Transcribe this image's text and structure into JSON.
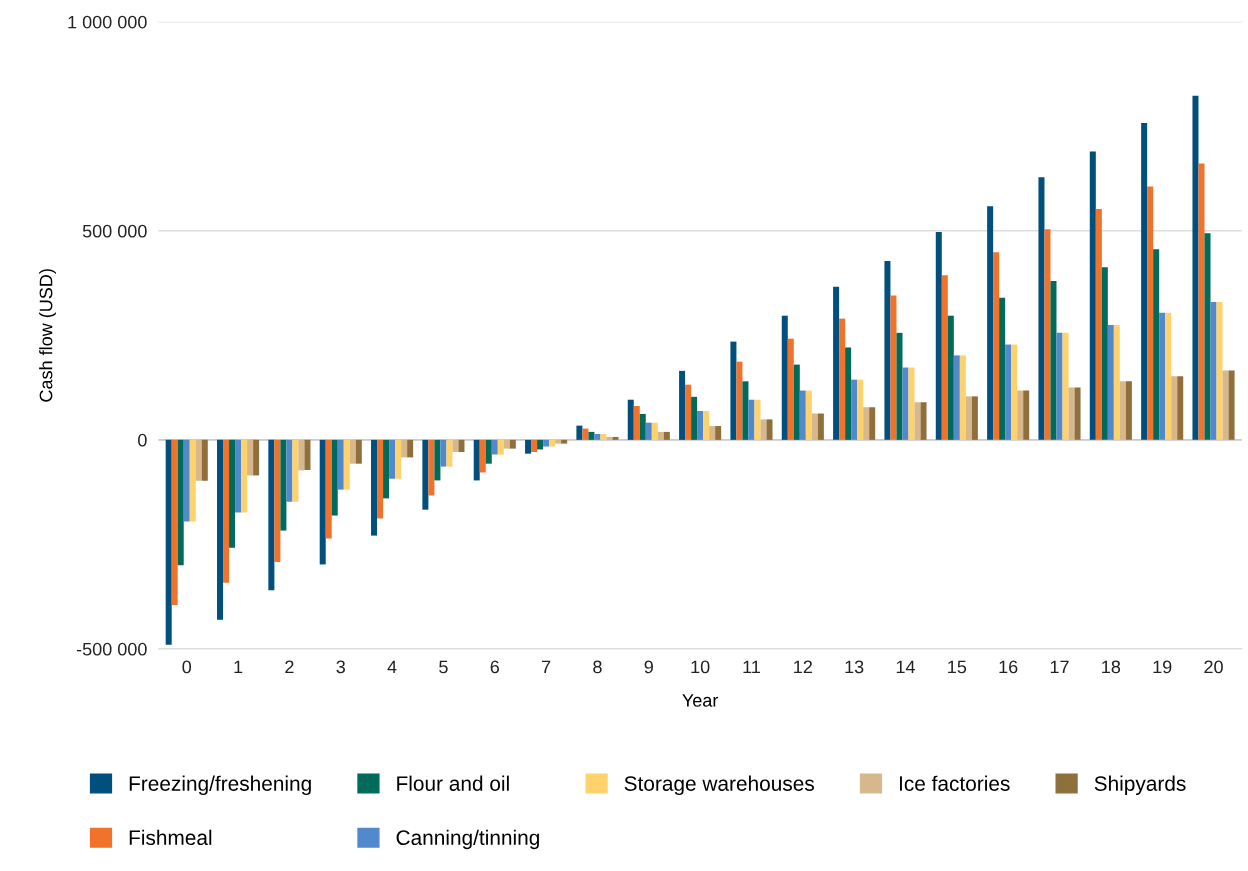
{
  "chart_data": {
    "type": "bar",
    "xlabel": "Year",
    "ylabel": "Cash flow (USD)",
    "categories": [
      "0",
      "1",
      "2",
      "3",
      "4",
      "5",
      "6",
      "7",
      "8",
      "9",
      "10",
      "11",
      "12",
      "13",
      "14",
      "15",
      "16",
      "17",
      "18",
      "19",
      "20"
    ],
    "series": [
      {
        "name": "Freezing/freshening",
        "color": "#004f7c",
        "values": [
          -490000,
          -430000,
          -360000,
          -298000,
          -229000,
          -167000,
          -97000,
          -33000,
          34000,
          96000,
          165000,
          235000,
          297000,
          366000,
          428000,
          497000,
          559000,
          628000,
          690000,
          758000,
          823000
        ]
      },
      {
        "name": "Fishmeal",
        "color": "#f1722b",
        "values": [
          -395000,
          -342000,
          -292000,
          -236000,
          -188000,
          -133000,
          -78000,
          -29000,
          27000,
          81000,
          132000,
          187000,
          242000,
          290000,
          345000,
          394000,
          449000,
          504000,
          552000,
          606000,
          661000
        ]
      },
      {
        "name": "Flour and oil",
        "color": "#006b5a",
        "values": [
          -300000,
          -258000,
          -217000,
          -181000,
          -140000,
          -97000,
          -57000,
          -23000,
          19000,
          62000,
          103000,
          140000,
          180000,
          221000,
          256000,
          297000,
          340000,
          380000,
          413000,
          456000,
          494000
        ]
      },
      {
        "name": "Canning/tinning",
        "color": "#5289cd",
        "values": [
          -195000,
          -174000,
          -148000,
          -119000,
          -93000,
          -64000,
          -35000,
          -16000,
          14000,
          41000,
          69000,
          96000,
          118000,
          144000,
          173000,
          202000,
          228000,
          256000,
          275000,
          304000,
          330000
        ]
      },
      {
        "name": "Storage warehouses",
        "color": "#ffd26b",
        "values": [
          -195000,
          -174000,
          -148000,
          -119000,
          -93000,
          -64000,
          -35000,
          -16000,
          14000,
          41000,
          69000,
          96000,
          118000,
          144000,
          173000,
          202000,
          228000,
          256000,
          275000,
          304000,
          330000
        ]
      },
      {
        "name": "Ice factories",
        "color": "#d6b88c",
        "values": [
          -98000,
          -85000,
          -73000,
          -57000,
          -42000,
          -29000,
          -21000,
          -9000,
          7000,
          19000,
          33000,
          49000,
          63000,
          78000,
          90000,
          104000,
          118000,
          125000,
          140000,
          152000,
          166000
        ]
      },
      {
        "name": "Shipyards",
        "color": "#8f6f3c",
        "values": [
          -98000,
          -85000,
          -72000,
          -57000,
          -42000,
          -29000,
          -21000,
          -9000,
          7000,
          19000,
          33000,
          49000,
          63000,
          78000,
          90000,
          104000,
          118000,
          125000,
          140000,
          152000,
          166000
        ]
      }
    ],
    "ylim": [
      -500000,
      1000000
    ],
    "yticks": [
      {
        "value": -500000,
        "label": "-500 000"
      },
      {
        "value": 0,
        "label": "0"
      },
      {
        "value": 500000,
        "label": "500 000"
      },
      {
        "value": 1000000,
        "label": "1 000 000"
      }
    ],
    "grid": "y",
    "legend": "bottom"
  }
}
